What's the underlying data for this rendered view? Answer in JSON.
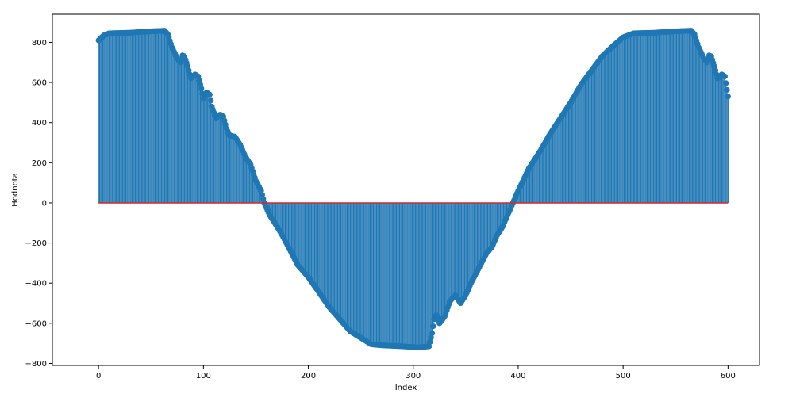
{
  "chart_data": {
    "type": "stem",
    "title": "",
    "xlabel": "Index",
    "ylabel": "Hodnota",
    "xlim": [
      -44,
      630
    ],
    "ylim": [
      -810,
      940
    ],
    "xticks": [
      0,
      100,
      200,
      300,
      400,
      500,
      600
    ],
    "yticks": [
      -800,
      -600,
      -400,
      -200,
      0,
      200,
      400,
      600,
      800
    ],
    "ytick_labels": [
      "−800",
      "−600",
      "−400",
      "−200",
      "0",
      "200",
      "400",
      "600",
      "800"
    ],
    "grid": false,
    "baseline": 0,
    "n_points": 601,
    "x_range": [
      0,
      600
    ],
    "profile_keypoints": [
      {
        "x": 0,
        "y": 810
      },
      {
        "x": 5,
        "y": 835
      },
      {
        "x": 10,
        "y": 845
      },
      {
        "x": 30,
        "y": 848
      },
      {
        "x": 50,
        "y": 855
      },
      {
        "x": 63,
        "y": 858
      },
      {
        "x": 66,
        "y": 840
      },
      {
        "x": 70,
        "y": 775
      },
      {
        "x": 75,
        "y": 720
      },
      {
        "x": 78,
        "y": 700
      },
      {
        "x": 80,
        "y": 735
      },
      {
        "x": 82,
        "y": 730
      },
      {
        "x": 85,
        "y": 680
      },
      {
        "x": 88,
        "y": 620
      },
      {
        "x": 92,
        "y": 640
      },
      {
        "x": 95,
        "y": 630
      },
      {
        "x": 98,
        "y": 570
      },
      {
        "x": 100,
        "y": 520
      },
      {
        "x": 103,
        "y": 550
      },
      {
        "x": 106,
        "y": 540
      },
      {
        "x": 108,
        "y": 480
      },
      {
        "x": 112,
        "y": 420
      },
      {
        "x": 116,
        "y": 440
      },
      {
        "x": 119,
        "y": 430
      },
      {
        "x": 122,
        "y": 370
      },
      {
        "x": 125,
        "y": 335
      },
      {
        "x": 130,
        "y": 330
      },
      {
        "x": 135,
        "y": 290
      },
      {
        "x": 140,
        "y": 230
      },
      {
        "x": 145,
        "y": 190
      },
      {
        "x": 150,
        "y": 110
      },
      {
        "x": 155,
        "y": 60
      },
      {
        "x": 158,
        "y": 0
      },
      {
        "x": 163,
        "y": -60
      },
      {
        "x": 168,
        "y": -100
      },
      {
        "x": 175,
        "y": -160
      },
      {
        "x": 190,
        "y": -310
      },
      {
        "x": 200,
        "y": -370
      },
      {
        "x": 220,
        "y": -520
      },
      {
        "x": 240,
        "y": -640
      },
      {
        "x": 260,
        "y": -705
      },
      {
        "x": 270,
        "y": -710
      },
      {
        "x": 290,
        "y": -715
      },
      {
        "x": 305,
        "y": -720
      },
      {
        "x": 315,
        "y": -715
      },
      {
        "x": 318,
        "y": -650
      },
      {
        "x": 320,
        "y": -580
      },
      {
        "x": 322,
        "y": -560
      },
      {
        "x": 325,
        "y": -600
      },
      {
        "x": 330,
        "y": -565
      },
      {
        "x": 335,
        "y": -490
      },
      {
        "x": 340,
        "y": -460
      },
      {
        "x": 345,
        "y": -500
      },
      {
        "x": 350,
        "y": -460
      },
      {
        "x": 355,
        "y": -400
      },
      {
        "x": 360,
        "y": -350
      },
      {
        "x": 365,
        "y": -300
      },
      {
        "x": 370,
        "y": -250
      },
      {
        "x": 375,
        "y": -220
      },
      {
        "x": 380,
        "y": -160
      },
      {
        "x": 385,
        "y": -120
      },
      {
        "x": 390,
        "y": -60
      },
      {
        "x": 395,
        "y": 0
      },
      {
        "x": 400,
        "y": 60
      },
      {
        "x": 410,
        "y": 170
      },
      {
        "x": 420,
        "y": 250
      },
      {
        "x": 430,
        "y": 340
      },
      {
        "x": 440,
        "y": 420
      },
      {
        "x": 450,
        "y": 500
      },
      {
        "x": 460,
        "y": 590
      },
      {
        "x": 470,
        "y": 660
      },
      {
        "x": 480,
        "y": 730
      },
      {
        "x": 490,
        "y": 780
      },
      {
        "x": 500,
        "y": 825
      },
      {
        "x": 510,
        "y": 845
      },
      {
        "x": 530,
        "y": 848
      },
      {
        "x": 550,
        "y": 855
      },
      {
        "x": 565,
        "y": 858
      },
      {
        "x": 568,
        "y": 840
      },
      {
        "x": 572,
        "y": 775
      },
      {
        "x": 577,
        "y": 720
      },
      {
        "x": 580,
        "y": 700
      },
      {
        "x": 582,
        "y": 735
      },
      {
        "x": 584,
        "y": 730
      },
      {
        "x": 587,
        "y": 680
      },
      {
        "x": 590,
        "y": 620
      },
      {
        "x": 594,
        "y": 640
      },
      {
        "x": 597,
        "y": 630
      },
      {
        "x": 600,
        "y": 530
      }
    ],
    "colors": {
      "stems": "#1f77b4",
      "markers": "#1f77b4",
      "baseline": "#d62728",
      "axes": "#000000",
      "background": "#ffffff"
    }
  }
}
